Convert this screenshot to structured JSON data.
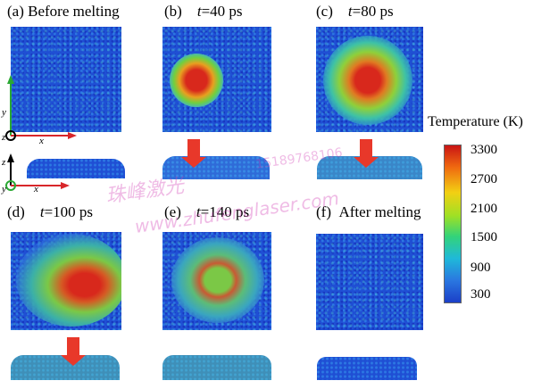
{
  "panels": [
    {
      "letter": "(a)",
      "title": "Before melting"
    },
    {
      "letter": "(b)",
      "var": "t",
      "eq": "=40 ps"
    },
    {
      "letter": "(c)",
      "var": "t",
      "eq": "=80 ps"
    },
    {
      "letter": "(d)",
      "var": "t",
      "eq": "=100 ps"
    },
    {
      "letter": "(e)",
      "var": "t",
      "eq": "=140 ps"
    },
    {
      "letter": "(f)",
      "title": "After melting"
    }
  ],
  "colorbar": {
    "title": "Temperature (K)",
    "ticks": [
      "3300",
      "2700",
      "2100",
      "1500",
      "900",
      "300"
    ],
    "colors": [
      "#c91414",
      "#f06a10",
      "#f2d013",
      "#9ee025",
      "#33d37a",
      "#1fb9d9",
      "#2a77e0",
      "#1b3fc8"
    ]
  },
  "axes": {
    "top_y": "y",
    "top_z": "z",
    "top_x": "x",
    "side_z": "z",
    "side_y": "y",
    "side_x": "x"
  },
  "watermark": {
    "cn": "珠峰激光",
    "url": "www.zhufenglaser.com",
    "phone": "15189768106"
  }
}
